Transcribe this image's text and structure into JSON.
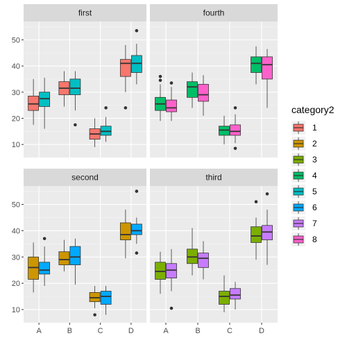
{
  "chart_data": {
    "type": "boxplot",
    "facet_layout": "2x2",
    "x_categories": [
      "A",
      "B",
      "C",
      "D"
    ],
    "y_ticks": [
      10,
      20,
      30,
      40,
      50
    ],
    "ylim": [
      5,
      57
    ],
    "grid": true,
    "legend": {
      "title": "category2",
      "placement": "right",
      "items": [
        {
          "label": "1",
          "color": "#F8766D"
        },
        {
          "label": "2",
          "color": "#CD9600"
        },
        {
          "label": "3",
          "color": "#7CAE00"
        },
        {
          "label": "4",
          "color": "#00BE67"
        },
        {
          "label": "5",
          "color": "#00BFC4"
        },
        {
          "label": "6",
          "color": "#00A9FF"
        },
        {
          "label": "7",
          "color": "#C77CFF"
        },
        {
          "label": "8",
          "color": "#FF61CC"
        }
      ]
    },
    "panels": [
      {
        "title": "first",
        "groups": [
          {
            "x": "A",
            "boxes": [
              {
                "cat": "1",
                "min": 17.5,
                "q1": 23,
                "median": 25.5,
                "q3": 28.5,
                "max": 35,
                "outliers": []
              },
              {
                "cat": "5",
                "min": 16,
                "q1": 24.5,
                "median": 27.5,
                "q3": 30,
                "max": 35.5,
                "outliers": []
              }
            ]
          },
          {
            "x": "B",
            "boxes": [
              {
                "cat": "1",
                "min": 24.5,
                "q1": 29,
                "median": 31.5,
                "q3": 34,
                "max": 38,
                "outliers": []
              },
              {
                "cat": "5",
                "min": 23,
                "q1": 29,
                "median": 31.5,
                "q3": 35,
                "max": 38,
                "outliers": [
                  17.5
                ]
              }
            ]
          },
          {
            "x": "C",
            "boxes": [
              {
                "cat": "1",
                "min": 9,
                "q1": 12,
                "median": 14,
                "q3": 16,
                "max": 20,
                "outliers": []
              },
              {
                "cat": "5",
                "min": 11,
                "q1": 13.5,
                "median": 15,
                "q3": 17,
                "max": 20.5,
                "outliers": [
                  24
                ]
              }
            ]
          },
          {
            "x": "D",
            "boxes": [
              {
                "cat": "1",
                "min": 30,
                "q1": 36,
                "median": 41,
                "q3": 42.5,
                "max": 48,
                "outliers": [
                  24
                ]
              },
              {
                "cat": "5",
                "min": 33,
                "q1": 37.5,
                "median": 41,
                "q3": 44,
                "max": 48.5,
                "outliers": [
                  53.5
                ]
              }
            ]
          }
        ]
      },
      {
        "title": "fourth",
        "groups": [
          {
            "x": "A",
            "boxes": [
              {
                "cat": "4",
                "min": 19,
                "q1": 23,
                "median": 25.5,
                "q3": 28,
                "max": 33,
                "outliers": [
                  34.5,
                  36
                ]
              },
              {
                "cat": "8",
                "min": 19,
                "q1": 22.5,
                "median": 24,
                "q3": 27,
                "max": 32,
                "outliers": [
                  33.5
                ]
              }
            ]
          },
          {
            "x": "B",
            "boxes": [
              {
                "cat": "4",
                "min": 24,
                "q1": 28,
                "median": 32,
                "q3": 34,
                "max": 37.5,
                "outliers": []
              },
              {
                "cat": "8",
                "min": 21,
                "q1": 26.5,
                "median": 29,
                "q3": 33,
                "max": 36.5,
                "outliers": []
              }
            ]
          },
          {
            "x": "C",
            "boxes": [
              {
                "cat": "4",
                "min": 10,
                "q1": 13.5,
                "median": 15.5,
                "q3": 17,
                "max": 21,
                "outliers": []
              },
              {
                "cat": "8",
                "min": 10.5,
                "q1": 13.5,
                "median": 15,
                "q3": 17.5,
                "max": 21.5,
                "outliers": [
                  8.5,
                  24
                ]
              }
            ]
          },
          {
            "x": "D",
            "boxes": [
              {
                "cat": "4",
                "min": 33,
                "q1": 37.5,
                "median": 41,
                "q3": 43.5,
                "max": 47.5,
                "outliers": []
              },
              {
                "cat": "8",
                "min": 24,
                "q1": 35,
                "median": 40.5,
                "q3": 43.5,
                "max": 46.5,
                "outliers": []
              }
            ]
          }
        ]
      },
      {
        "title": "second",
        "groups": [
          {
            "x": "A",
            "boxes": [
              {
                "cat": "2",
                "min": 16.5,
                "q1": 21.5,
                "median": 26,
                "q3": 30,
                "max": 35.5,
                "outliers": []
              },
              {
                "cat": "6",
                "min": 19,
                "q1": 23.5,
                "median": 25,
                "q3": 28,
                "max": 34,
                "outliers": [
                  37
                ]
              }
            ]
          },
          {
            "x": "B",
            "boxes": [
              {
                "cat": "2",
                "min": 24.5,
                "q1": 27,
                "median": 29,
                "q3": 32,
                "max": 36.5,
                "outliers": []
              },
              {
                "cat": "6",
                "min": 19.5,
                "q1": 27,
                "median": 30,
                "q3": 34,
                "max": 37,
                "outliers": []
              }
            ]
          },
          {
            "x": "C",
            "boxes": [
              {
                "cat": "2",
                "min": 10.5,
                "q1": 13,
                "median": 14.5,
                "q3": 16.5,
                "max": 19,
                "outliers": [
                  8
                ]
              },
              {
                "cat": "6",
                "min": 8,
                "q1": 12,
                "median": 15,
                "q3": 17,
                "max": 19,
                "outliers": []
              }
            ]
          },
          {
            "x": "D",
            "boxes": [
              {
                "cat": "2",
                "min": 29.5,
                "q1": 36.5,
                "median": 38.5,
                "q3": 43,
                "max": 48,
                "outliers": []
              },
              {
                "cat": "6",
                "min": 35,
                "q1": 38.5,
                "median": 40,
                "q3": 42.5,
                "max": 45,
                "outliers": [
                  31.5,
                  55
                ]
              }
            ]
          }
        ]
      },
      {
        "title": "third",
        "groups": [
          {
            "x": "A",
            "boxes": [
              {
                "cat": "3",
                "min": 16,
                "q1": 21.5,
                "median": 24.5,
                "q3": 28,
                "max": 32,
                "outliers": []
              },
              {
                "cat": "7",
                "min": 17,
                "q1": 22,
                "median": 25,
                "q3": 27.5,
                "max": 33,
                "outliers": [
                  10.5
                ]
              }
            ]
          },
          {
            "x": "B",
            "boxes": [
              {
                "cat": "3",
                "min": 23,
                "q1": 27.5,
                "median": 30,
                "q3": 33,
                "max": 41,
                "outliers": []
              },
              {
                "cat": "7",
                "min": 21.5,
                "q1": 26,
                "median": 29.5,
                "q3": 31.5,
                "max": 36,
                "outliers": []
              }
            ]
          },
          {
            "x": "C",
            "boxes": [
              {
                "cat": "3",
                "min": 9,
                "q1": 12,
                "median": 15,
                "q3": 17,
                "max": 23,
                "outliers": []
              },
              {
                "cat": "7",
                "min": 10,
                "q1": 14,
                "median": 15.5,
                "q3": 18,
                "max": 20.5,
                "outliers": []
              }
            ]
          },
          {
            "x": "D",
            "boxes": [
              {
                "cat": "3",
                "min": 29,
                "q1": 35.5,
                "median": 38,
                "q3": 41.5,
                "max": 45,
                "outliers": [
                  51
                ]
              },
              {
                "cat": "7",
                "min": 27,
                "q1": 36.5,
                "median": 39.5,
                "q3": 42,
                "max": 48,
                "outliers": [
                  54
                ]
              }
            ]
          }
        ]
      }
    ]
  }
}
